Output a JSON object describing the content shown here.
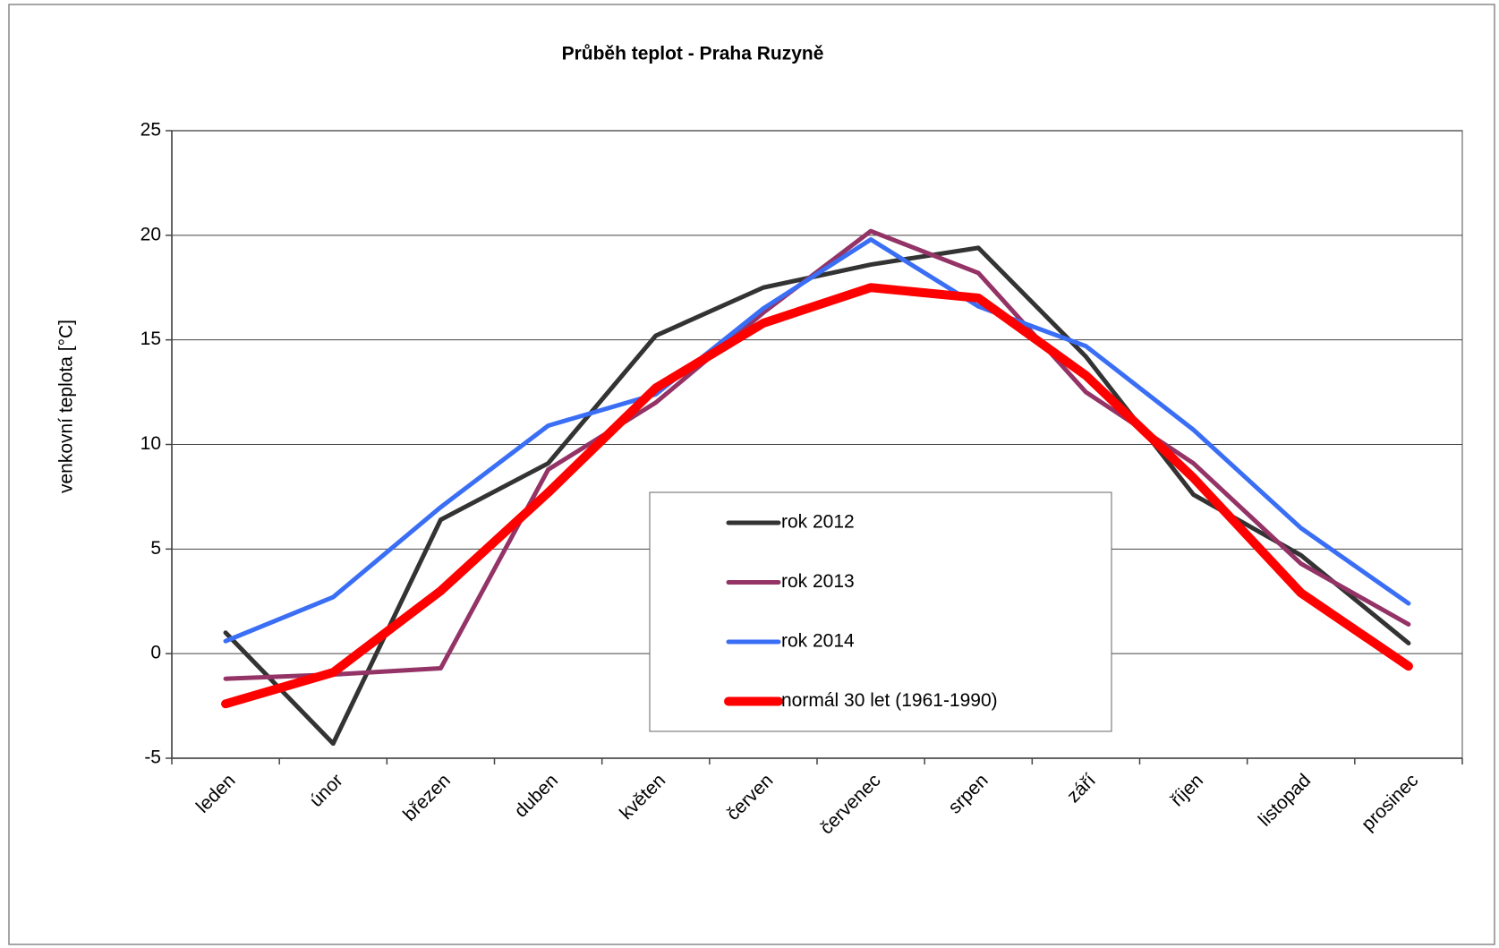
{
  "chart_data": {
    "type": "line",
    "title": "Průběh teplot - Praha Ruzyně",
    "y_label": "venkovní teplota [°C]",
    "categories": [
      "leden",
      "únor",
      "březen",
      "duben",
      "květen",
      "červen",
      "červenec",
      "srpen",
      "září",
      "říjen",
      "listopad",
      "prosinec"
    ],
    "series": [
      {
        "name": "rok 2012",
        "color": "#333333",
        "width": 5,
        "values": [
          1.0,
          -4.3,
          6.4,
          9.1,
          15.2,
          17.5,
          18.6,
          19.4,
          14.2,
          7.6,
          4.7,
          0.5
        ]
      },
      {
        "name": "rok 2013",
        "color": "#943366",
        "width": 5,
        "values": [
          -1.2,
          -1.0,
          -0.7,
          8.8,
          12.0,
          16.3,
          20.2,
          18.2,
          12.5,
          9.1,
          4.3,
          1.4
        ]
      },
      {
        "name": "rok 2014",
        "color": "#3a6ef5",
        "width": 5,
        "values": [
          0.6,
          2.7,
          7.0,
          10.9,
          12.4,
          16.5,
          19.8,
          16.6,
          14.7,
          10.7,
          6.0,
          2.4
        ]
      },
      {
        "name": "normál 30 let (1961-1990)",
        "color": "#ff0000",
        "width": 10,
        "values": [
          -2.4,
          -0.9,
          3.0,
          7.7,
          12.7,
          15.8,
          17.5,
          17.0,
          13.3,
          8.4,
          2.9,
          -0.6
        ]
      }
    ],
    "ylim": [
      -5,
      25
    ],
    "yticks": [
      -5,
      0,
      5,
      10,
      15,
      20,
      25
    ],
    "grid": true
  }
}
